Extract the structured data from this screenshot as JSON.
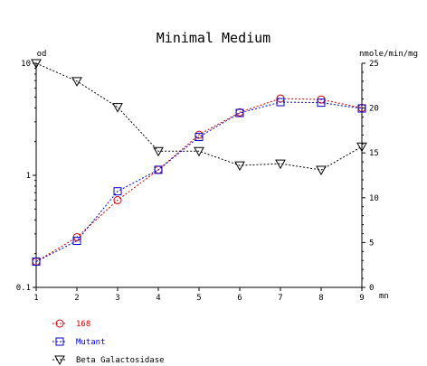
{
  "chart_data": {
    "type": "line",
    "title": "Minimal Medium",
    "left_axis": {
      "label": "od",
      "scale": "log",
      "range": [
        0.1,
        10
      ],
      "ticks": [
        0.1,
        1,
        10
      ],
      "tick_labels": [
        "0.1",
        "1",
        "10"
      ]
    },
    "right_axis": {
      "label": "nmole/min/mg",
      "scale": "linear",
      "range": [
        0,
        25
      ],
      "ticks": [
        0,
        5,
        10,
        15,
        20,
        25
      ],
      "tick_labels": [
        "0",
        "5",
        "10",
        "15",
        "20",
        "25"
      ]
    },
    "x_axis": {
      "label": "mn",
      "range": [
        1,
        9
      ],
      "ticks": [
        1,
        2,
        3,
        4,
        5,
        6,
        7,
        8,
        9
      ],
      "tick_labels": [
        "1",
        "2",
        "3",
        "4",
        "5",
        "6",
        "7",
        "8",
        "9"
      ]
    },
    "grid": false,
    "legend_placement": "bottom-left",
    "series": [
      {
        "name": "168",
        "axis": "left",
        "marker": "circle",
        "color": "#cc0000",
        "x": [
          1,
          2,
          3,
          4,
          5,
          6,
          7,
          8,
          9
        ],
        "y": [
          0.17,
          0.28,
          0.6,
          1.12,
          2.3,
          3.65,
          4.85,
          4.75,
          4.0
        ]
      },
      {
        "name": "Mutant",
        "axis": "left",
        "marker": "square",
        "color": "#0000cc",
        "x": [
          1,
          2,
          3,
          4,
          5,
          6,
          7,
          8,
          9
        ],
        "y": [
          0.17,
          0.26,
          0.72,
          1.12,
          2.2,
          3.6,
          4.5,
          4.45,
          3.95
        ]
      },
      {
        "name": "Beta Galactosidase",
        "axis": "right",
        "marker": "triangle-down",
        "color": "#000000",
        "x": [
          1,
          2,
          3,
          4,
          5,
          6,
          7,
          8,
          9
        ],
        "y": [
          25,
          23,
          20.1,
          15.2,
          15.2,
          13.6,
          13.8,
          13.1,
          15.7
        ]
      }
    ]
  }
}
